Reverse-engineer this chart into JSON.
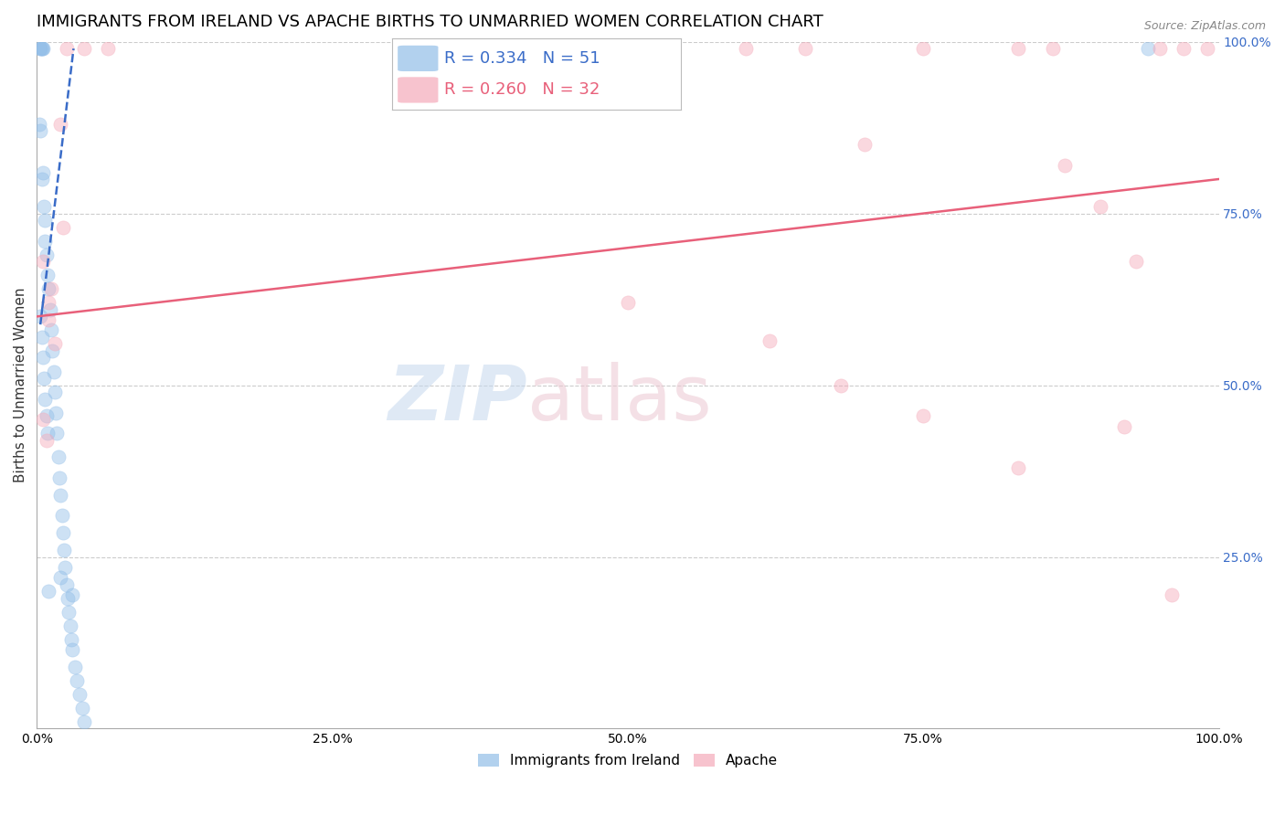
{
  "title": "IMMIGRANTS FROM IRELAND VS APACHE BIRTHS TO UNMARRIED WOMEN CORRELATION CHART",
  "source": "Source: ZipAtlas.com",
  "ylabel": "Births to Unmarried Women",
  "xmin": 0.0,
  "xmax": 1.0,
  "ymin": 0.0,
  "ymax": 1.0,
  "xticks": [
    0.0,
    0.25,
    0.5,
    0.75,
    1.0
  ],
  "xtick_labels": [
    "0.0%",
    "25.0%",
    "50.0%",
    "75.0%",
    "100.0%"
  ],
  "ytick_labels_right": [
    "",
    "25.0%",
    "50.0%",
    "75.0%",
    "100.0%"
  ],
  "blue_color": "#92BEE8",
  "pink_color": "#F5AABA",
  "blue_line_color": "#3A6CC8",
  "pink_line_color": "#E8607A",
  "legend_blue_r": "0.334",
  "legend_blue_n": "51",
  "legend_pink_r": "0.260",
  "legend_pink_n": "32",
  "blue_scatter_x": [
    0.003,
    0.003,
    0.004,
    0.004,
    0.005,
    0.002,
    0.003,
    0.004,
    0.005,
    0.006,
    0.007,
    0.007,
    0.008,
    0.009,
    0.01,
    0.011,
    0.012,
    0.013,
    0.014,
    0.015,
    0.016,
    0.017,
    0.018,
    0.019,
    0.02,
    0.021,
    0.022,
    0.023,
    0.024,
    0.025,
    0.026,
    0.027,
    0.028,
    0.029,
    0.03,
    0.032,
    0.034,
    0.036,
    0.038,
    0.04,
    0.003,
    0.004,
    0.005,
    0.006,
    0.007,
    0.008,
    0.009,
    0.01,
    0.02,
    0.03,
    0.94
  ],
  "blue_scatter_y": [
    0.99,
    0.99,
    0.99,
    0.99,
    0.99,
    0.88,
    0.87,
    0.8,
    0.81,
    0.76,
    0.74,
    0.71,
    0.69,
    0.66,
    0.64,
    0.61,
    0.58,
    0.55,
    0.52,
    0.49,
    0.46,
    0.43,
    0.395,
    0.365,
    0.34,
    0.31,
    0.285,
    0.26,
    0.235,
    0.21,
    0.19,
    0.17,
    0.15,
    0.13,
    0.115,
    0.09,
    0.07,
    0.05,
    0.03,
    0.01,
    0.6,
    0.57,
    0.54,
    0.51,
    0.48,
    0.455,
    0.43,
    0.2,
    0.22,
    0.195,
    0.99
  ],
  "pink_scatter_x": [
    0.005,
    0.01,
    0.015,
    0.02,
    0.022,
    0.025,
    0.04,
    0.06,
    0.5,
    0.6,
    0.65,
    0.7,
    0.75,
    0.83,
    0.86,
    0.87,
    0.9,
    0.93,
    0.95,
    0.97,
    0.99,
    0.005,
    0.008,
    0.01,
    0.012,
    0.5,
    0.62,
    0.68,
    0.75,
    0.83,
    0.92,
    0.96
  ],
  "pink_scatter_y": [
    0.68,
    0.62,
    0.56,
    0.88,
    0.73,
    0.99,
    0.99,
    0.99,
    0.99,
    0.99,
    0.99,
    0.85,
    0.99,
    0.99,
    0.99,
    0.82,
    0.76,
    0.68,
    0.99,
    0.99,
    0.99,
    0.45,
    0.42,
    0.595,
    0.64,
    0.62,
    0.565,
    0.5,
    0.455,
    0.38,
    0.44,
    0.195
  ],
  "blue_trend_x": [
    0.003,
    0.031
  ],
  "blue_trend_y": [
    0.59,
    0.99
  ],
  "pink_trend_x": [
    0.0,
    1.0
  ],
  "pink_trend_y": [
    0.6,
    0.8
  ],
  "background_color": "#FFFFFF",
  "grid_color": "#CCCCCC",
  "title_fontsize": 13,
  "axis_label_fontsize": 11,
  "tick_fontsize": 10,
  "marker_size": 120,
  "marker_alpha": 0.45
}
